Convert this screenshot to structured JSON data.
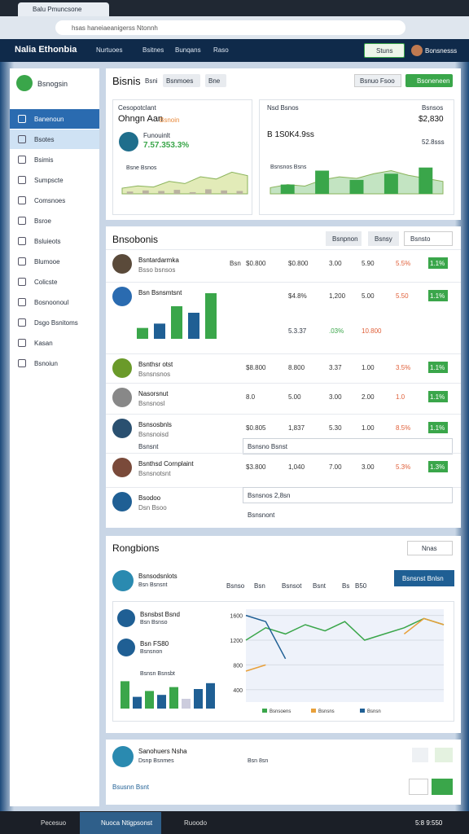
{
  "browser": {
    "tab": "Balu Pmuncsone",
    "url": "hsas haneiaeanigerss Ntonnh"
  },
  "header": {
    "brand": "Nalia Ethonbia",
    "nav": [
      "Nurtuoes",
      "Bsitnes",
      "Bunqans",
      "Raso"
    ],
    "button": "Stuns",
    "user": "Bonsnesss"
  },
  "sidebar": {
    "logo": "Bsnogsin",
    "items": [
      "Banenoun",
      "Bsotes",
      "Bsimis",
      "Sumpscte",
      "Comsnoes",
      "Bsroe",
      "Bsluieots",
      "Blumooe",
      "Colicste",
      "Bosnoonoul",
      "Dsgo Bsnitoms",
      "Kasan",
      "Bsnoiun"
    ]
  },
  "overview": {
    "title": "Bisnis",
    "tabs": [
      "Bsni",
      "Bsnmoes",
      "Bne"
    ],
    "actions": [
      "Bsnuo Fsoo",
      "Bsoneneen"
    ],
    "card1": {
      "title": "Cesopotclant",
      "subtitle": "Ohngn Aan",
      "badge": "Bsnoin",
      "label": "Funouinlt",
      "value": "7.57.353.3%",
      "axis_label": "Bsne Bsnos",
      "chart": {
        "type": "area",
        "color": "#d6e29a",
        "values": [
          10,
          14,
          12,
          22,
          18,
          30,
          26,
          38,
          32
        ],
        "ylim": [
          0,
          40
        ],
        "bars": [
          4,
          6,
          5,
          7,
          3,
          8,
          6,
          5
        ]
      }
    },
    "card2": {
      "title": "Nsd Bsnos",
      "value": "B 1S0K4.9ss",
      "right_title": "Bsnsos",
      "right_value": "$2,830",
      "right_sub": "52.8sss",
      "axis_label": "Bsnsnos Bsns",
      "chart": {
        "type": "area",
        "color": "#a9d9a8",
        "values": [
          8,
          12,
          10,
          18,
          22,
          20,
          26,
          30,
          24,
          20,
          16
        ],
        "ylim": [
          0,
          40
        ],
        "bars": [
          12,
          30,
          18,
          26,
          34
        ]
      }
    }
  },
  "table": {
    "title": "Bnsobonis",
    "buttons": [
      "Bsnpnon",
      "Bsnsy",
      "Bsnsto"
    ],
    "rows": [
      {
        "name": "Bsntardarmka",
        "sub": "Bsso bsnsos",
        "cells": [
          "Bsn",
          "$0.800",
          "$0.800",
          "3.00",
          "5.90",
          "5.5%",
          "1.1%"
        ]
      },
      {
        "name": "Bsn Bsnsmtsnt",
        "cells": [
          "$4.8%",
          "1,200",
          "5.00",
          "5.50",
          "1.1%"
        ],
        "cells2": [
          "5.3.37",
          ".03%",
          "10.800"
        ],
        "chart": {
          "type": "bar",
          "values": [
            10,
            14,
            30,
            24,
            42
          ],
          "ylim": [
            0,
            45
          ]
        }
      },
      {
        "name": "Bsnthsr otst",
        "sub": "Bsnsnsnos",
        "cells": [
          "$8.800",
          "8.800",
          "3.37",
          "1.00",
          "3.5%",
          "1.1%"
        ]
      },
      {
        "name": "Nasorsnut",
        "sub": "Bsnsnosl",
        "cells": [
          "8.0",
          "5.00",
          "3.00",
          "2.00",
          "1.0",
          "1.1%"
        ]
      },
      {
        "name": "Bsnsosbnls",
        "sub": "Bsnsnoisd",
        "cells": [
          "$0.805",
          "1,837",
          "5.30",
          "1.00",
          "8.5%",
          "1.1%"
        ],
        "extra": "Bsnsnt",
        "input": "Bsnsno Bsnst"
      },
      {
        "name": "Bsnthsd Cornplaint",
        "sub": "Bsnsnotsnt",
        "cells": [
          "$3.800",
          "1,040",
          "7.00",
          "3.00",
          "5.3%",
          "1.3%"
        ]
      },
      {
        "name": "Bsodoo",
        "sub": "Dsn Bsoo",
        "input": "Bsnsnos 2,8sn",
        "extra": "Bsnsnont"
      }
    ]
  },
  "regions": {
    "title": "Rongbions",
    "dropdown": "Nnas",
    "button": "Bsnsnst Bnlsn",
    "heading": "Bsnsodsnlots",
    "sub": "Bsn Bsnsnt",
    "columns": [
      "Bsnso",
      "Bsn",
      "Bsnsot",
      "Bsnt",
      "Bs",
      "B50"
    ],
    "items": [
      {
        "name": "Bsnsbst Bsnd",
        "sub": "Bsn Bsnso"
      },
      {
        "name": "Bsn FS80",
        "sub": "Bsnsnon"
      }
    ],
    "bars_label": "Bsnsn Bsnsbt",
    "bars": {
      "type": "bar",
      "values": [
        28,
        12,
        18,
        14,
        22,
        10,
        20,
        26
      ],
      "ylim": [
        0,
        30
      ]
    },
    "chart": {
      "type": "line",
      "ylim": [
        200,
        1700
      ],
      "yticks": [
        400,
        800,
        1200,
        1600
      ],
      "series": [
        {
          "name": "Bsnsoens",
          "color": "#3aa64a",
          "values": [
            1200,
            1400,
            1300,
            1450,
            1350,
            1500,
            1200,
            1300,
            1400,
            1550,
            1450
          ]
        },
        {
          "name": "Bsnsns",
          "color": "#e8a03a",
          "values": [
            700,
            800,
            null,
            null,
            null,
            null,
            null,
            null,
            1300,
            1550,
            1450
          ]
        },
        {
          "name": "Bsnsn",
          "color": "#1f5f94",
          "values": [
            1600,
            1500,
            900,
            null,
            null,
            null,
            null,
            null,
            null,
            null,
            null
          ]
        }
      ]
    }
  },
  "footer_card": {
    "title": "Sanohuers Nsha",
    "sub": "Dsnp Bsnmes",
    "middle": "Bsn 8sn",
    "link": "Bsusnn Bsnt"
  },
  "taskbar": {
    "search": "Pecesuo",
    "app": "Nuoca Ntigpsonst",
    "app2": "Ruoodo",
    "time": "5:8 9:550"
  }
}
